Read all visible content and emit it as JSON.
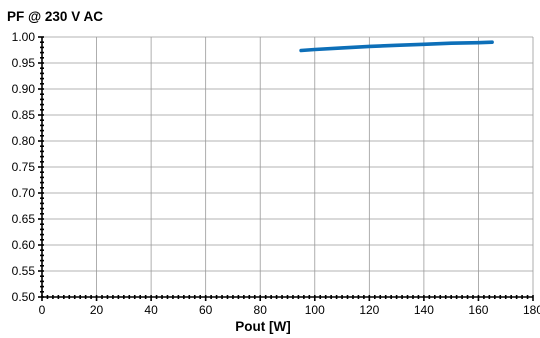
{
  "chart_data": {
    "type": "line",
    "title": "PF  @ 230 V AC",
    "xlabel": "Pout [W]",
    "ylabel": "",
    "xlim": [
      0,
      180
    ],
    "ylim": [
      0.5,
      1.0
    ],
    "x_ticks": [
      0,
      20,
      40,
      60,
      80,
      100,
      120,
      140,
      160,
      180
    ],
    "y_ticks": [
      0.5,
      0.55,
      0.6,
      0.65,
      0.7,
      0.75,
      0.8,
      0.85,
      0.9,
      0.95,
      1.0
    ],
    "x_tick_labels": [
      "0",
      "20",
      "40",
      "60",
      "80",
      "100",
      "120",
      "140",
      "160",
      "180"
    ],
    "y_tick_labels": [
      "0.50",
      "0.55",
      "0.60",
      "0.65",
      "0.70",
      "0.75",
      "0.80",
      "0.85",
      "0.90",
      "0.95",
      "1.00"
    ],
    "grid": true,
    "series_color": "#0d6fb8",
    "series": [
      {
        "x": [
          95,
          100,
          110,
          120,
          130,
          140,
          150,
          160,
          165
        ],
        "y": [
          0.974,
          0.976,
          0.979,
          0.982,
          0.984,
          0.986,
          0.988,
          0.989,
          0.99
        ]
      }
    ]
  }
}
